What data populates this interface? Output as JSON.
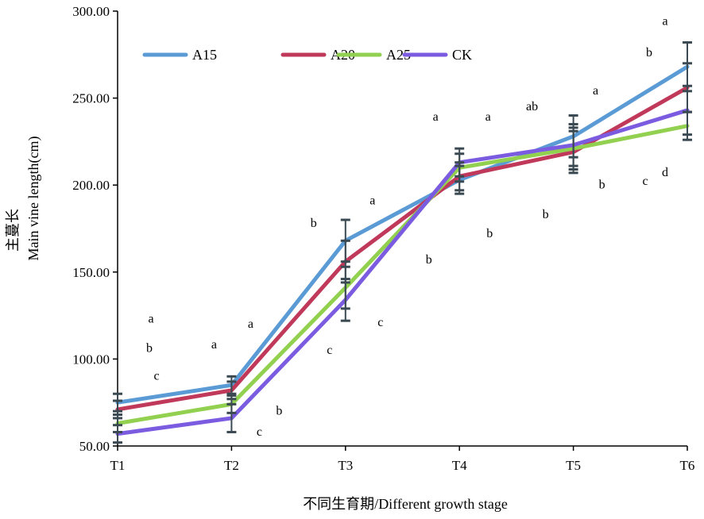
{
  "chart_data": {
    "type": "line",
    "categories": [
      "T1",
      "T2",
      "T3",
      "T4",
      "T5",
      "T6"
    ],
    "xlabel": "不同生育期/Different growth stage",
    "ylabel_cn": "主蔓长",
    "ylabel_en": "Main vine length(cm)",
    "ylim": [
      50,
      300
    ],
    "yticks": [
      "50.00",
      "100.00",
      "150.00",
      "200.00",
      "250.00",
      "300.00"
    ],
    "grid": false,
    "legend_position": "top-left",
    "series": [
      {
        "name": "A15",
        "color": "#5b9bd5",
        "values": [
          75,
          85,
          168,
          203,
          228,
          268
        ],
        "error": [
          5,
          5,
          12,
          8,
          12,
          14
        ]
      },
      {
        "name": "A20",
        "color": "#c0395a",
        "values": [
          71,
          82,
          156,
          205,
          219,
          256
        ],
        "error": [
          5,
          5,
          12,
          8,
          12,
          14
        ]
      },
      {
        "name": "A25",
        "color": "#92d050",
        "values": [
          63,
          74,
          141,
          210,
          221,
          234
        ],
        "error": [
          5,
          5,
          12,
          8,
          12,
          8
        ]
      },
      {
        "name": "CK",
        "color": "#7b5ce0",
        "values": [
          57,
          66,
          134,
          213,
          223,
          243
        ],
        "error": [
          5,
          8,
          12,
          8,
          12,
          14
        ]
      }
    ],
    "annotations": [
      {
        "text": "a",
        "x": "T1",
        "y": 121
      },
      {
        "text": "b",
        "x": "T1",
        "y": 104
      },
      {
        "text": "c",
        "x": "T1",
        "y": 88
      },
      {
        "text": "a",
        "x": "T2",
        "y": 106
      },
      {
        "text": "a",
        "x": "T2",
        "y": 118
      },
      {
        "text": "b",
        "x": "T2",
        "y": 68
      },
      {
        "text": "c",
        "x": "T2",
        "y": 56
      },
      {
        "text": "b",
        "x": "T3",
        "y": 176
      },
      {
        "text": "a",
        "x": "T3",
        "y": 189
      },
      {
        "text": "c",
        "x": "T3",
        "y": 103
      },
      {
        "text": "c",
        "x": "T3",
        "y": 119
      },
      {
        "text": "b",
        "x": "T3",
        "y": 155
      },
      {
        "text": "a",
        "x": "T4",
        "y": 237
      },
      {
        "text": "a",
        "x": "T4",
        "y": 237
      },
      {
        "text": "b",
        "x": "T4",
        "y": 170
      },
      {
        "text": "ab",
        "x": "T5",
        "y": 243
      },
      {
        "text": "b",
        "x": "T5",
        "y": 181
      },
      {
        "text": "a",
        "x": "T5",
        "y": 252
      },
      {
        "text": "b",
        "x": "T5",
        "y": 198
      },
      {
        "text": "c",
        "x": "T6",
        "y": 200
      },
      {
        "text": "d",
        "x": "T6",
        "y": 205
      },
      {
        "text": "b",
        "x": "T6",
        "y": 274
      },
      {
        "text": "a",
        "x": "T6",
        "y": 292
      }
    ]
  }
}
